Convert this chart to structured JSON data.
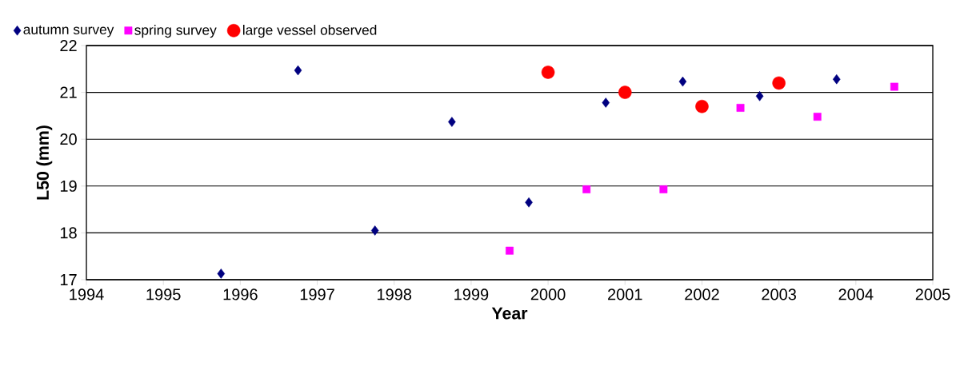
{
  "chart_data": {
    "type": "scatter",
    "xlabel": "Year",
    "ylabel": "L50 (mm)",
    "xlim": [
      1994,
      2005
    ],
    "xticks": [
      1994,
      1995,
      1996,
      1997,
      1998,
      1999,
      2000,
      2001,
      2002,
      2003,
      2004,
      2005
    ],
    "ylim": [
      17,
      22
    ],
    "yticks": [
      17,
      18,
      19,
      20,
      21,
      22
    ],
    "grid": "y",
    "legend": "top left",
    "series": [
      {
        "name": "autumn survey",
        "color": "#000080",
        "marker": "diamond",
        "x": [
          1995.75,
          1996.75,
          1997.75,
          1998.75,
          1999.75,
          2000.75,
          2001.75,
          2002.75,
          2003.75
        ],
        "values": [
          17.13,
          21.47,
          18.05,
          20.37,
          18.65,
          20.78,
          21.23,
          20.92,
          21.28
        ]
      },
      {
        "name": "spring survey",
        "color": "#ff00ff",
        "marker": "square",
        "x": [
          1999.5,
          2000.5,
          2001.5,
          2002.5,
          2003.5,
          2004.5
        ],
        "values": [
          17.62,
          18.93,
          18.93,
          20.67,
          20.48,
          21.12
        ]
      },
      {
        "name": "large vessel observed",
        "color": "#ff0000",
        "marker": "circle",
        "x": [
          2000,
          2001,
          2002,
          2003
        ],
        "values": [
          21.43,
          21.0,
          20.7,
          21.2
        ]
      }
    ]
  }
}
